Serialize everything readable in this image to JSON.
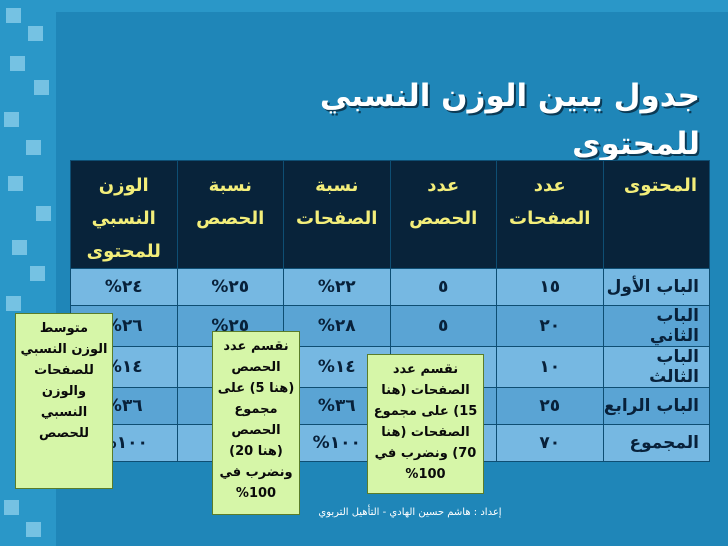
{
  "slide": {
    "title": "جدول يبين الوزن النسبي للمحتوى",
    "footer": "إعداد : هاشم حسين الهادي - التأهيل التربوي"
  },
  "table": {
    "headers": [
      "المحتوى",
      "عدد الصفحات",
      "عدد الحصص",
      "نسبة الصفحات",
      "نسبة الحصص",
      "الوزن النسبي للمحتوى"
    ],
    "rows": [
      [
        "الباب الأول",
        "١٥",
        "٥",
        "٢٢%",
        "٢٥%",
        "٢٤%"
      ],
      [
        "الباب الثاني",
        "٢٠",
        "٥",
        "٢٨%",
        "٢٥%",
        "٢٦%"
      ],
      [
        "الباب الثالث",
        "١٠",
        "",
        "١٤%",
        "",
        "١٤%"
      ],
      [
        "الباب الرابع",
        "٢٥",
        "",
        "٣٦%",
        "",
        "٣٦%"
      ],
      [
        "المجموع",
        "٧٠",
        "",
        "١٠٠%",
        "%",
        "١٠٠%"
      ]
    ]
  },
  "notes": {
    "weight": "متوسط الوزن النسبي للصفحات والوزن النسبي للحصص",
    "lessons": "نقسم عدد الحصص (هنا 5) على مجموع الحصص (هنا 20) ونضرب في 100%",
    "pages": "نقسم عدد الصفحات (هنا 15) على مجموع الصفحات (هنا 70) ونضرب في 100%"
  },
  "colors": {
    "background": "#1f86b8",
    "header_bg": "#08233a",
    "header_text": "#f3ee7a",
    "row_bg": "#76b8e2",
    "note_bg": "#d6f6a8"
  }
}
